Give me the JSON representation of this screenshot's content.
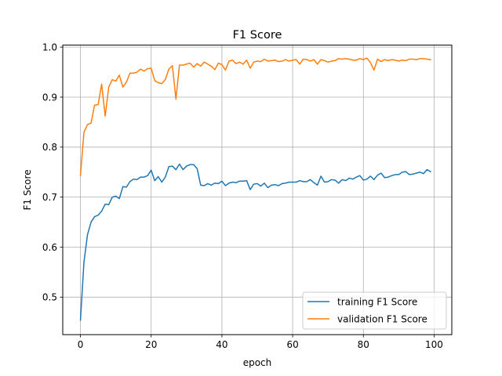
{
  "chart_data": {
    "type": "line",
    "title": "F1 Score",
    "xlabel": "epoch",
    "ylabel": "F1 Score",
    "xlim": [
      -5,
      105
    ],
    "ylim": [
      0.425,
      1.004
    ],
    "xticks": [
      0,
      20,
      40,
      60,
      80,
      100
    ],
    "xtick_labels": [
      "0",
      "20",
      "40",
      "60",
      "80",
      "100"
    ],
    "yticks": [
      0.5,
      0.6,
      0.7,
      0.8,
      0.9,
      1.0
    ],
    "ytick_labels": [
      "0.5",
      "0.6",
      "0.7",
      "0.8",
      "0.9",
      "1.0"
    ],
    "grid": true,
    "legend_position": "lower-right",
    "x": [
      0,
      1,
      2,
      3,
      4,
      5,
      6,
      7,
      8,
      9,
      10,
      11,
      12,
      13,
      14,
      15,
      16,
      17,
      18,
      19,
      20,
      21,
      22,
      23,
      24,
      25,
      26,
      27,
      28,
      29,
      30,
      31,
      32,
      33,
      34,
      35,
      36,
      37,
      38,
      39,
      40,
      41,
      42,
      43,
      44,
      45,
      46,
      47,
      48,
      49,
      50,
      51,
      52,
      53,
      54,
      55,
      56,
      57,
      58,
      59,
      60,
      61,
      62,
      63,
      64,
      65,
      66,
      67,
      68,
      69,
      70,
      71,
      72,
      73,
      74,
      75,
      76,
      77,
      78,
      79,
      80,
      81,
      82,
      83,
      84,
      85,
      86,
      87,
      88,
      89,
      90,
      91,
      92,
      93,
      94,
      95,
      96,
      97,
      98,
      99
    ],
    "series": [
      {
        "name": "training F1 Score",
        "color": "#1f77b4",
        "values": [
          0.454,
          0.57,
          0.625,
          0.65,
          0.661,
          0.664,
          0.672,
          0.686,
          0.685,
          0.7,
          0.702,
          0.697,
          0.721,
          0.72,
          0.731,
          0.736,
          0.735,
          0.74,
          0.74,
          0.743,
          0.754,
          0.733,
          0.741,
          0.73,
          0.74,
          0.761,
          0.762,
          0.755,
          0.766,
          0.755,
          0.762,
          0.765,
          0.765,
          0.757,
          0.724,
          0.723,
          0.727,
          0.724,
          0.728,
          0.727,
          0.732,
          0.723,
          0.728,
          0.73,
          0.729,
          0.732,
          0.732,
          0.733,
          0.715,
          0.726,
          0.727,
          0.722,
          0.728,
          0.719,
          0.724,
          0.725,
          0.723,
          0.727,
          0.728,
          0.73,
          0.73,
          0.73,
          0.733,
          0.731,
          0.731,
          0.735,
          0.729,
          0.724,
          0.742,
          0.73,
          0.731,
          0.735,
          0.734,
          0.728,
          0.735,
          0.733,
          0.738,
          0.736,
          0.74,
          0.743,
          0.734,
          0.736,
          0.742,
          0.735,
          0.744,
          0.748,
          0.739,
          0.74,
          0.743,
          0.745,
          0.745,
          0.75,
          0.751,
          0.745,
          0.746,
          0.748,
          0.75,
          0.747,
          0.755,
          0.751
        ]
      },
      {
        "name": "validation F1 Score",
        "color": "#ff7f0e",
        "values": [
          0.743,
          0.83,
          0.845,
          0.848,
          0.884,
          0.885,
          0.926,
          0.862,
          0.92,
          0.935,
          0.932,
          0.944,
          0.92,
          0.93,
          0.948,
          0.948,
          0.95,
          0.956,
          0.952,
          0.957,
          0.958,
          0.933,
          0.929,
          0.927,
          0.935,
          0.956,
          0.963,
          0.896,
          0.964,
          0.964,
          0.966,
          0.968,
          0.96,
          0.967,
          0.962,
          0.97,
          0.966,
          0.962,
          0.955,
          0.968,
          0.965,
          0.954,
          0.972,
          0.974,
          0.967,
          0.97,
          0.966,
          0.974,
          0.958,
          0.97,
          0.972,
          0.971,
          0.976,
          0.972,
          0.973,
          0.974,
          0.971,
          0.972,
          0.975,
          0.972,
          0.974,
          0.975,
          0.966,
          0.976,
          0.975,
          0.972,
          0.975,
          0.966,
          0.975,
          0.973,
          0.97,
          0.972,
          0.973,
          0.977,
          0.976,
          0.977,
          0.976,
          0.974,
          0.974,
          0.977,
          0.975,
          0.978,
          0.969,
          0.954,
          0.976,
          0.971,
          0.975,
          0.973,
          0.975,
          0.974,
          0.972,
          0.974,
          0.973,
          0.976,
          0.976,
          0.975,
          0.977,
          0.977,
          0.976,
          0.975
        ]
      }
    ]
  }
}
